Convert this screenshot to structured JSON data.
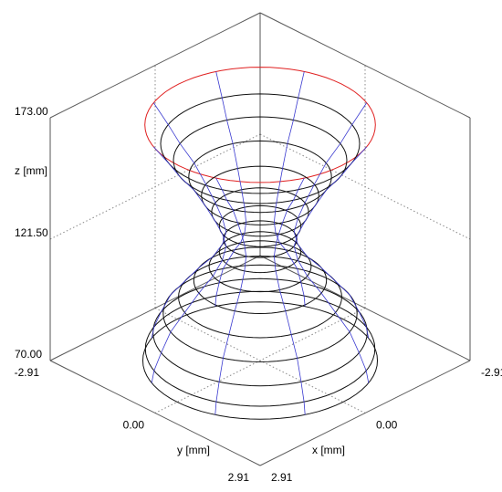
{
  "chart_data": {
    "type": "wireframe3d",
    "xlabel": "x [mm]",
    "ylabel": "y [mm]",
    "zlabel": "z [mm]",
    "xlim": [
      -2.91,
      2.91
    ],
    "xticks": [
      {
        "value": -2.91,
        "label": "-2.91"
      },
      {
        "value": 0,
        "label": "0.00"
      },
      {
        "value": 2.91,
        "label": "2.91"
      }
    ],
    "ylim": [
      -2.91,
      2.91
    ],
    "yticks": [
      {
        "value": -2.91,
        "label": "-2.91"
      },
      {
        "value": 0,
        "label": "0.00"
      },
      {
        "value": 2.91,
        "label": "2.91"
      }
    ],
    "zlim": [
      70,
      173
    ],
    "zticks": [
      {
        "value": 70,
        "label": "70.00"
      },
      {
        "value": 121.5,
        "label": "121.50"
      },
      {
        "value": 173,
        "label": "173.00"
      }
    ],
    "grid": true,
    "rings": {
      "z": [
        170,
        162,
        155,
        148,
        140,
        133,
        127,
        121.5,
        116,
        110,
        104,
        97,
        90,
        82,
        75,
        70
      ],
      "radius": [
        2.26,
        1.95,
        1.7,
        1.4,
        1.15,
        0.95,
        0.8,
        0.72,
        0.8,
        1.0,
        1.3,
        1.6,
        1.9,
        2.1,
        2.25,
        2.3
      ],
      "colors": [
        "#e02020",
        "#111",
        "#111",
        "#111",
        "#111",
        "#111",
        "#111",
        "#111",
        "#111",
        "#111",
        "#111",
        "#111",
        "#111",
        "#111",
        "#111",
        "#111"
      ]
    },
    "meridian_color": "#3a3ad0",
    "meridians": 8
  }
}
